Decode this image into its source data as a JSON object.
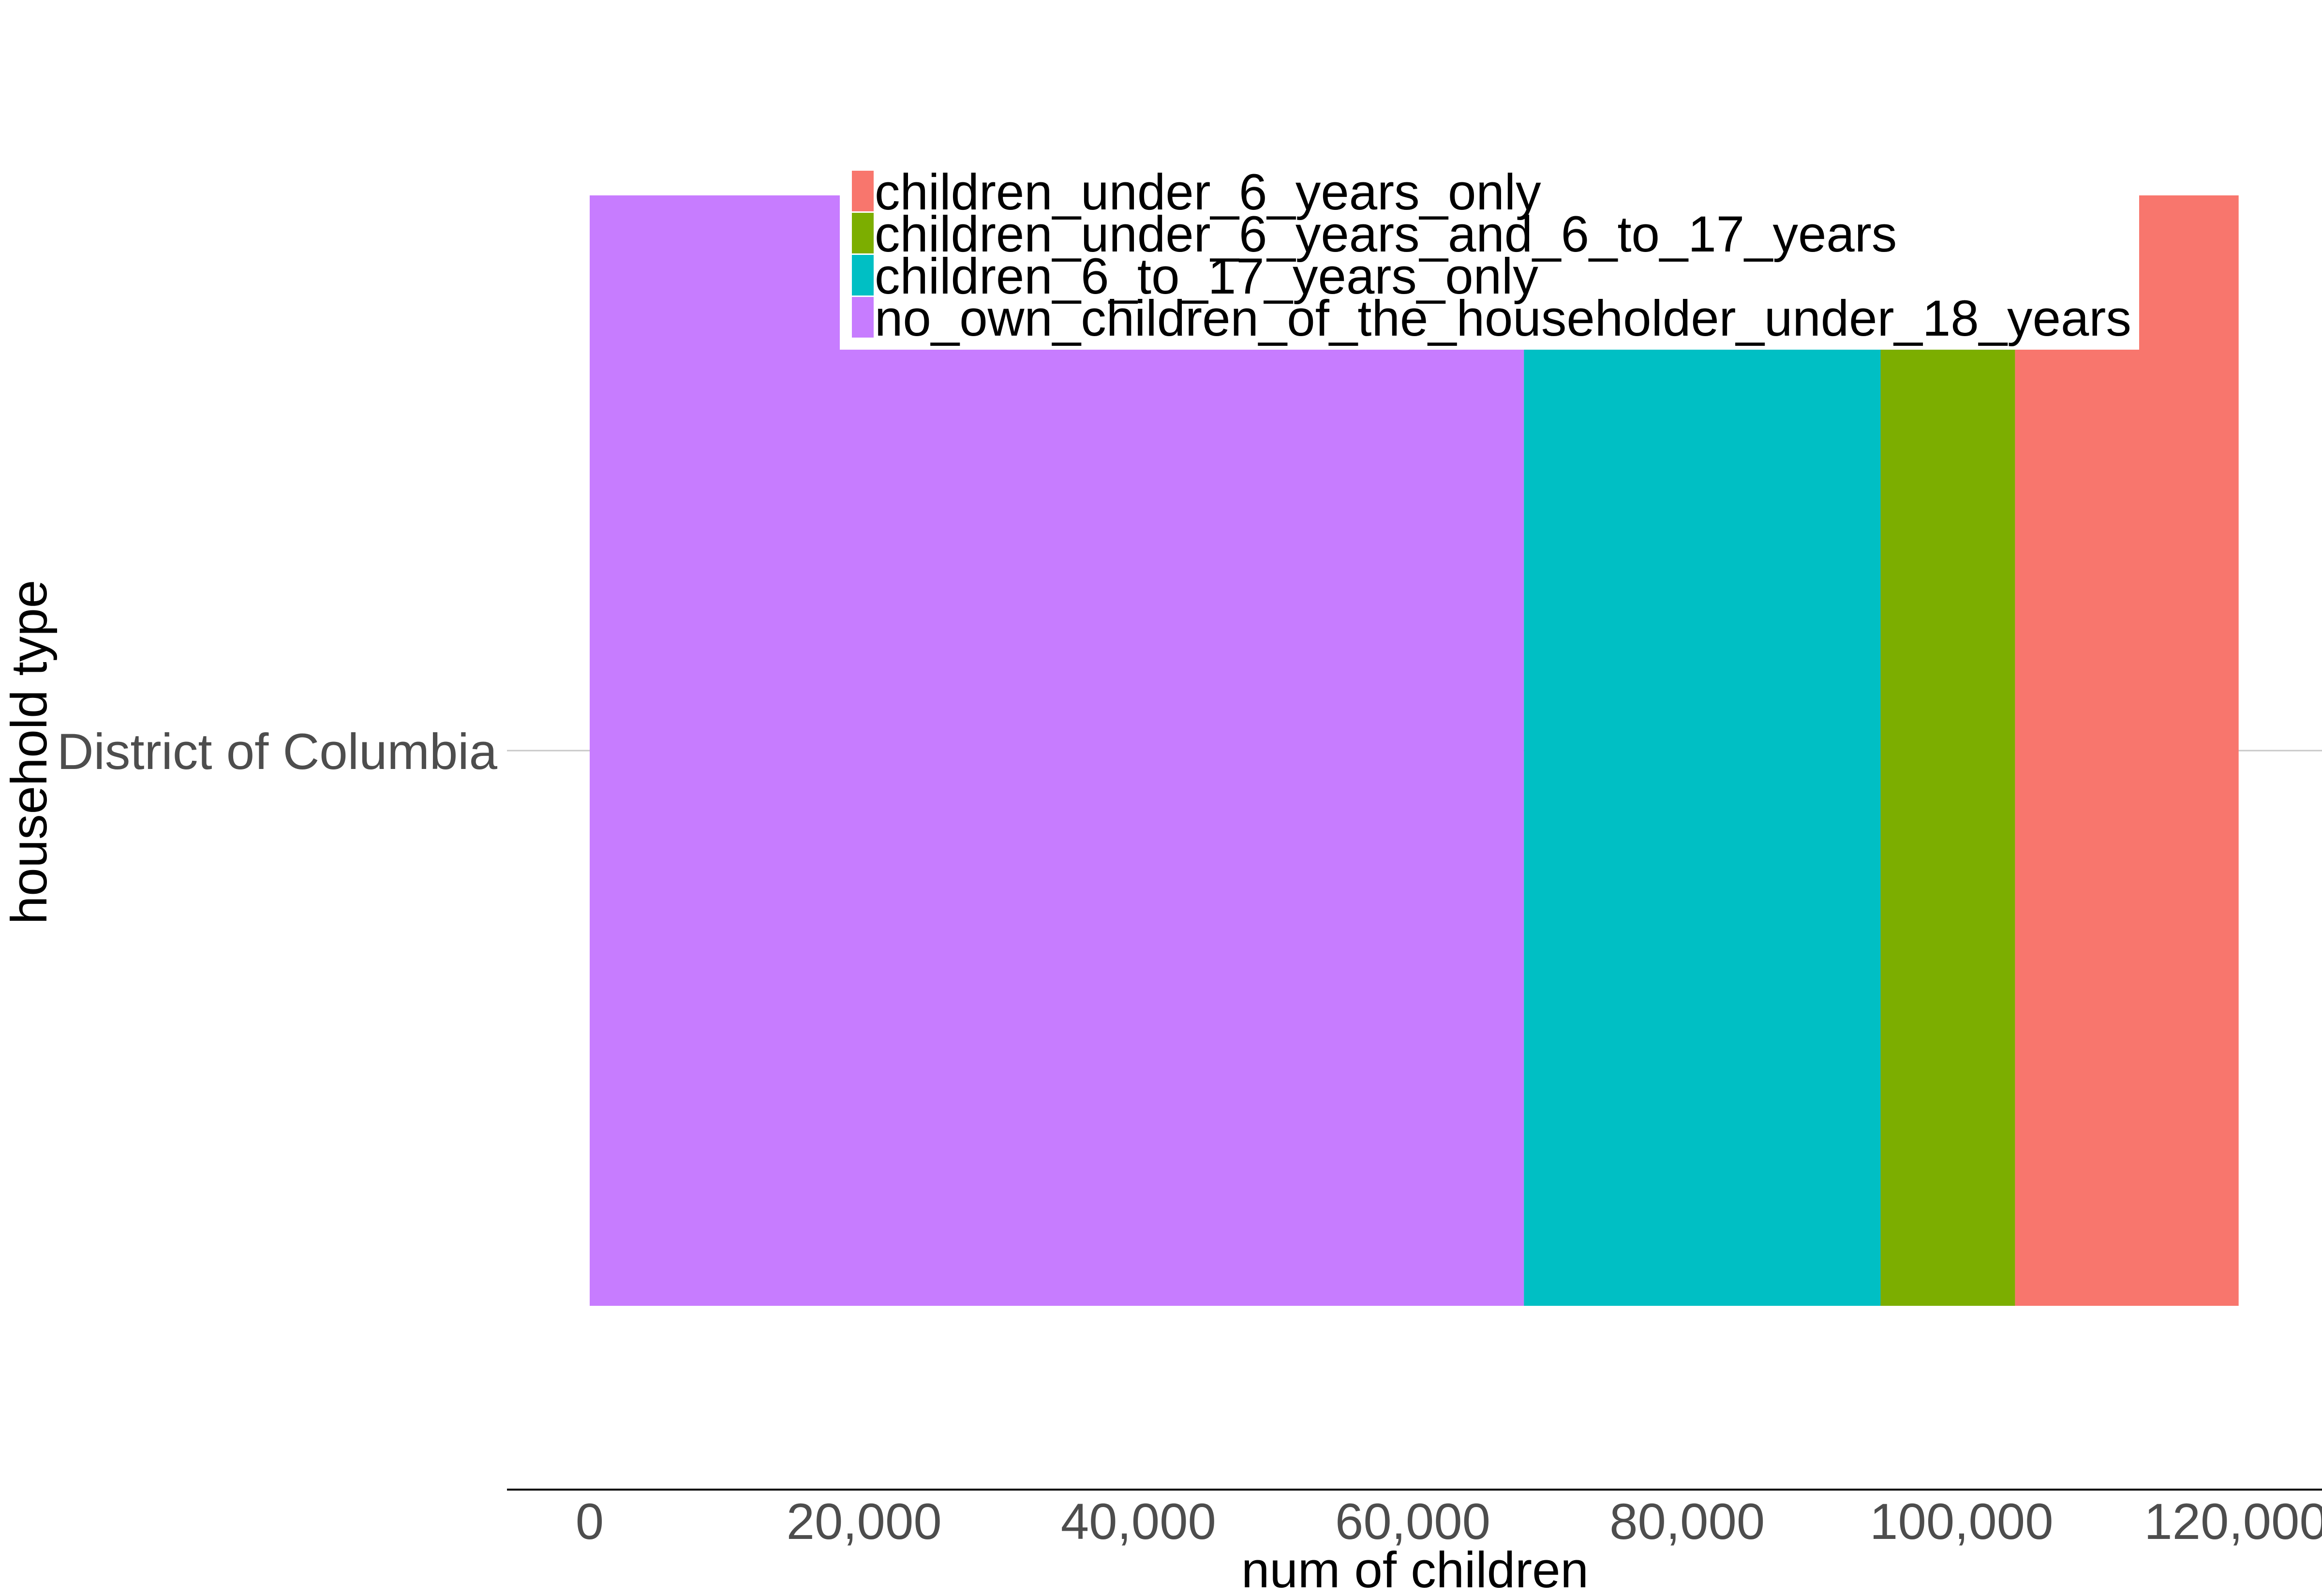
{
  "chart_data": {
    "type": "bar",
    "orientation": "horizontal",
    "stacked": true,
    "xlabel": "num of children",
    "ylabel": "household type",
    "categories": [
      "District of Columbia"
    ],
    "xlim": [
      -3000,
      126000
    ],
    "xticks": [
      0,
      20000,
      40000,
      60000,
      80000,
      100000,
      120000
    ],
    "xtick_labels": [
      "0",
      "20,000",
      "40,000",
      "60,000",
      "80,000",
      "100,000",
      "120,000"
    ],
    "grid": "horizontal major only",
    "legend_position": "top-center",
    "series": [
      {
        "name": "no_own_children_of_the_householder_under_18_years",
        "values": [
          68100
        ],
        "color": "#C77CFF"
      },
      {
        "name": "children_6_to_17_years_only",
        "values": [
          26000
        ],
        "color": "#00BFC4"
      },
      {
        "name": "children_under_6_years_and_6_to_17_years",
        "values": [
          9800
        ],
        "color": "#7CAE00"
      },
      {
        "name": "children_under_6_years_only",
        "values": [
          16300
        ],
        "color": "#F8766D"
      }
    ],
    "legend_order": [
      "children_under_6_years_only",
      "children_under_6_years_and_6_to_17_years",
      "children_6_to_17_years_only",
      "no_own_children_of_the_householder_under_18_years"
    ]
  }
}
